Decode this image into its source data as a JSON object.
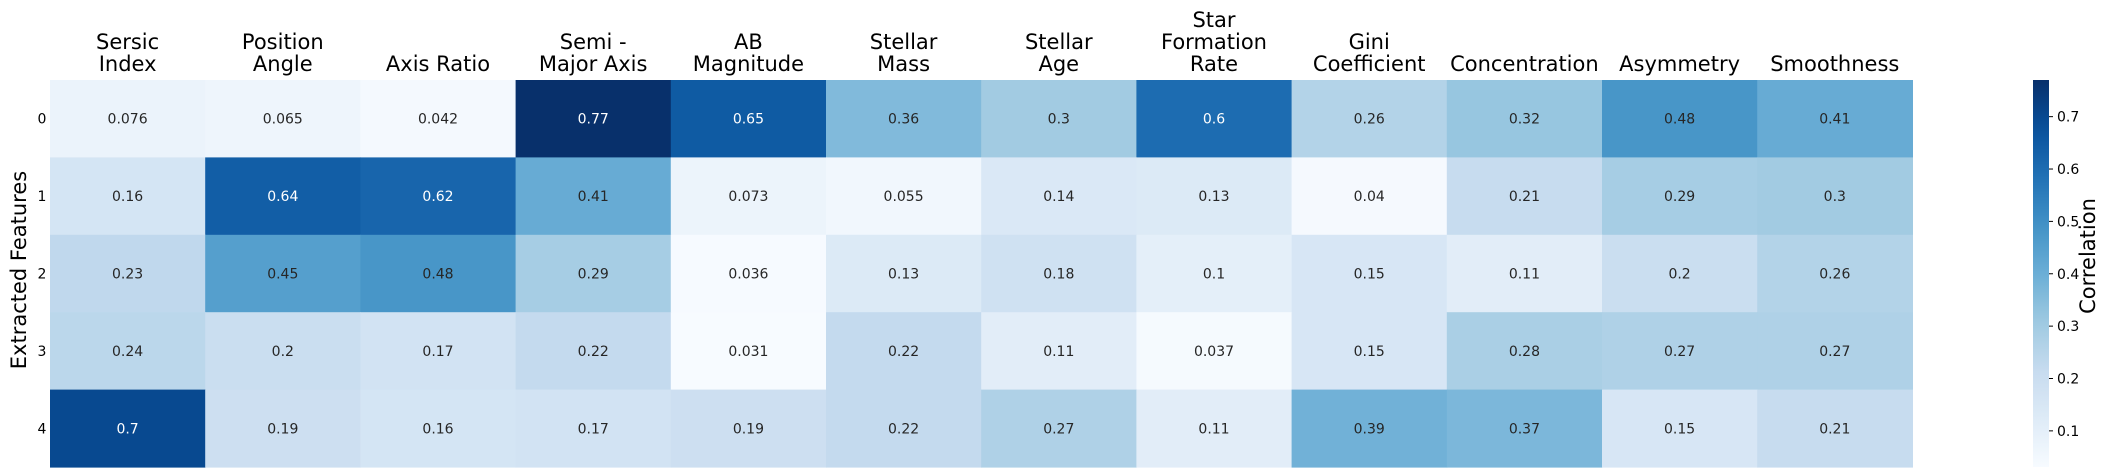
{
  "chart_data": {
    "type": "heatmap",
    "title": "",
    "ylabel": "Extracted Features",
    "colorbar_label": "Correlation",
    "colorbar_ticks": [
      0.1,
      0.2,
      0.3,
      0.4,
      0.5,
      0.6,
      0.7
    ],
    "vmin": 0.031,
    "vmax": 0.77,
    "colormap": [
      "#f7fbff",
      "#deebf7",
      "#c6dbef",
      "#9ecae1",
      "#6baed6",
      "#4292c6",
      "#2171b5",
      "#08519c",
      "#08306b"
    ],
    "columns": [
      [
        "Sersic",
        "Index"
      ],
      [
        "Position",
        "Angle"
      ],
      [
        "Axis Ratio"
      ],
      [
        "Semi -",
        "Major Axis"
      ],
      [
        "AB",
        "Magnitude"
      ],
      [
        "Stellar",
        "Mass"
      ],
      [
        "Stellar",
        "Age"
      ],
      [
        "Star",
        "Formation",
        "Rate"
      ],
      [
        "Gini",
        "Coefficient"
      ],
      [
        "Concentration"
      ],
      [
        "Asymmetry"
      ],
      [
        "Smoothness"
      ]
    ],
    "rows": [
      "0",
      "1",
      "2",
      "3",
      "4"
    ],
    "values": [
      [
        0.076,
        0.065,
        0.042,
        0.77,
        0.65,
        0.36,
        0.3,
        0.6,
        0.26,
        0.32,
        0.48,
        0.41
      ],
      [
        0.16,
        0.64,
        0.62,
        0.41,
        0.073,
        0.055,
        0.14,
        0.13,
        0.04,
        0.21,
        0.29,
        0.3
      ],
      [
        0.23,
        0.45,
        0.48,
        0.29,
        0.036,
        0.13,
        0.18,
        0.1,
        0.15,
        0.11,
        0.2,
        0.26
      ],
      [
        0.24,
        0.2,
        0.17,
        0.22,
        0.031,
        0.22,
        0.11,
        0.037,
        0.15,
        0.28,
        0.27,
        0.27
      ],
      [
        0.7,
        0.19,
        0.16,
        0.17,
        0.19,
        0.22,
        0.27,
        0.11,
        0.39,
        0.37,
        0.15,
        0.21
      ]
    ]
  }
}
